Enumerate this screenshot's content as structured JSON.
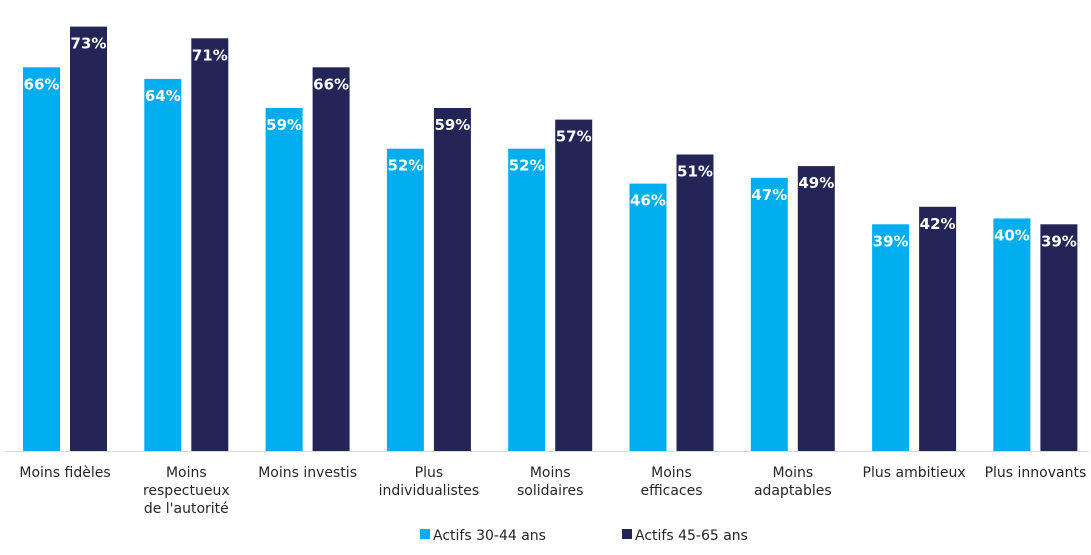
{
  "chart_data": {
    "type": "bar",
    "title": "",
    "xlabel": "",
    "ylabel": "",
    "ylim": [
      0,
      75
    ],
    "grid": false,
    "legend_position": "bottom",
    "categories": [
      [
        "Moins fidèles"
      ],
      [
        "Moins",
        "respectueux",
        "de l'autorité"
      ],
      [
        "Moins investis"
      ],
      [
        "Plus",
        "individualistes"
      ],
      [
        "Moins",
        "solidaires"
      ],
      [
        "Moins",
        "efficaces"
      ],
      [
        "Moins",
        "adaptables"
      ],
      [
        "Plus ambitieux"
      ],
      [
        "Plus innovants"
      ]
    ],
    "series": [
      {
        "name": "Actifs 30-44 ans",
        "color": "#00AEEF",
        "values": [
          66,
          64,
          59,
          52,
          52,
          46,
          47,
          39,
          40
        ],
        "labels": [
          "66%",
          "64%",
          "59%",
          "52%",
          "52%",
          "46%",
          "47%",
          "39%",
          "40%"
        ]
      },
      {
        "name": "Actifs 45-65 ans",
        "color": "#222555",
        "values": [
          73,
          71,
          66,
          59,
          57,
          51,
          49,
          42,
          39
        ],
        "labels": [
          "73%",
          "71%",
          "66%",
          "59%",
          "57%",
          "51%",
          "49%",
          "42%",
          "39%"
        ]
      }
    ],
    "axis_color": "#D9D9D9"
  }
}
